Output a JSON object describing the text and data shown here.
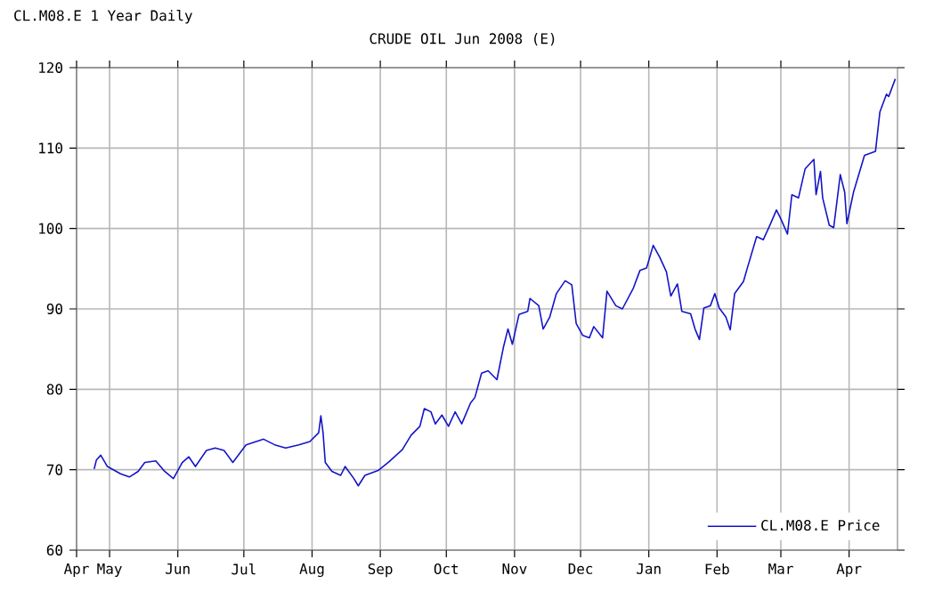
{
  "chart_data": {
    "type": "line",
    "title": "CRUDE OIL Jun 2008 (E)",
    "annotations": [
      "CL.M08.E 1 Year Daily"
    ],
    "x": [
      "2007-04-24",
      "2007-04-25",
      "2007-04-27",
      "2007-04-30",
      "2007-05-06",
      "2007-05-10",
      "2007-05-14",
      "2007-05-17",
      "2007-05-22",
      "2007-05-26",
      "2007-05-30",
      "2007-06-03",
      "2007-06-06",
      "2007-06-09",
      "2007-06-14",
      "2007-06-18",
      "2007-06-22",
      "2007-06-26",
      "2007-07-02",
      "2007-07-10",
      "2007-07-15",
      "2007-07-20",
      "2007-07-26",
      "2007-07-31",
      "2007-08-04",
      "2007-08-05",
      "2007-08-06",
      "2007-08-07",
      "2007-08-10",
      "2007-08-14",
      "2007-08-16",
      "2007-08-20",
      "2007-08-22",
      "2007-08-25",
      "2007-08-31",
      "2007-09-05",
      "2007-09-11",
      "2007-09-15",
      "2007-09-19",
      "2007-09-21",
      "2007-09-24",
      "2007-09-26",
      "2007-09-29",
      "2007-10-02",
      "2007-10-05",
      "2007-10-08",
      "2007-10-12",
      "2007-10-14",
      "2007-10-17",
      "2007-10-20",
      "2007-10-24",
      "2007-10-27",
      "2007-10-29",
      "2007-10-31",
      "2007-11-03",
      "2007-11-07",
      "2007-11-08",
      "2007-11-12",
      "2007-11-14",
      "2007-11-17",
      "2007-11-20",
      "2007-11-24",
      "2007-11-27",
      "2007-11-29",
      "2007-12-02",
      "2007-12-05",
      "2007-12-07",
      "2007-12-11",
      "2007-12-13",
      "2007-12-17",
      "2007-12-20",
      "2007-12-25",
      "2007-12-28",
      "2007-12-31",
      "2008-01-03",
      "2008-01-06",
      "2008-01-09",
      "2008-01-11",
      "2008-01-14",
      "2008-01-16",
      "2008-01-20",
      "2008-01-22",
      "2008-01-24",
      "2008-01-26",
      "2008-01-29",
      "2008-01-31",
      "2008-02-02",
      "2008-02-05",
      "2008-02-07",
      "2008-02-09",
      "2008-02-13",
      "2008-02-15",
      "2008-02-19",
      "2008-02-22",
      "2008-02-25",
      "2008-02-28",
      "2008-03-01",
      "2008-03-04",
      "2008-03-06",
      "2008-03-09",
      "2008-03-12",
      "2008-03-16",
      "2008-03-17",
      "2008-03-19",
      "2008-03-20",
      "2008-03-23",
      "2008-03-25",
      "2008-03-28",
      "2008-03-30",
      "2008-03-31",
      "2008-04-03",
      "2008-04-08",
      "2008-04-13",
      "2008-04-15",
      "2008-04-18",
      "2008-04-19",
      "2008-04-22"
    ],
    "series": [
      {
        "name": "CL.M08.E Price",
        "color": "#1414c8",
        "values": [
          70.1,
          71.2,
          71.8,
          70.4,
          69.5,
          69.1,
          69.8,
          70.9,
          71.1,
          69.8,
          68.9,
          70.9,
          71.6,
          70.4,
          72.4,
          72.7,
          72.4,
          70.9,
          73.1,
          73.8,
          73.1,
          72.7,
          73.1,
          73.5,
          74.6,
          76.7,
          74.6,
          70.9,
          69.8,
          69.3,
          70.4,
          68.9,
          68.0,
          69.3,
          69.9,
          71.0,
          72.5,
          74.3,
          75.4,
          77.6,
          77.2,
          75.7,
          76.8,
          75.4,
          77.2,
          75.7,
          78.3,
          79.0,
          82.0,
          82.3,
          81.2,
          85.3,
          87.5,
          85.6,
          89.3,
          89.7,
          91.3,
          90.4,
          87.5,
          89.0,
          91.9,
          93.5,
          93.0,
          88.2,
          86.7,
          86.4,
          87.8,
          86.4,
          92.2,
          90.4,
          90.0,
          92.6,
          94.8,
          95.1,
          97.9,
          96.4,
          94.6,
          91.6,
          93.1,
          89.7,
          89.4,
          87.5,
          86.2,
          90.1,
          90.4,
          91.9,
          90.1,
          89.0,
          87.4,
          91.9,
          93.4,
          95.3,
          99.0,
          98.6,
          100.4,
          102.3,
          101.2,
          99.3,
          104.2,
          103.8,
          107.4,
          108.6,
          104.2,
          107.1,
          103.8,
          100.4,
          100.1,
          106.7,
          104.5,
          100.6,
          104.5,
          109.1,
          109.6,
          114.5,
          116.7,
          116.4,
          118.6
        ]
      }
    ],
    "xlim": [
      "2007-04-16",
      "2008-04-23"
    ],
    "xticks": [
      {
        "value": "2007-04-16",
        "label": "Apr"
      },
      {
        "value": "2007-05-01",
        "label": "May"
      },
      {
        "value": "2007-06-01",
        "label": "Jun"
      },
      {
        "value": "2007-07-01",
        "label": "Jul"
      },
      {
        "value": "2007-08-01",
        "label": "Aug"
      },
      {
        "value": "2007-09-01",
        "label": "Sep"
      },
      {
        "value": "2007-10-01",
        "label": "Oct"
      },
      {
        "value": "2007-11-01",
        "label": "Nov"
      },
      {
        "value": "2007-12-01",
        "label": "Dec"
      },
      {
        "value": "2008-01-01",
        "label": "Jan"
      },
      {
        "value": "2008-02-01",
        "label": "Feb"
      },
      {
        "value": "2008-03-01",
        "label": "Mar"
      },
      {
        "value": "2008-04-01",
        "label": "Apr"
      }
    ],
    "ylim": [
      60,
      120
    ],
    "yticks": [
      60,
      70,
      80,
      90,
      100,
      110,
      120
    ],
    "grid": true,
    "legend": "bottom right",
    "marker": "none",
    "line_style": "solid"
  }
}
